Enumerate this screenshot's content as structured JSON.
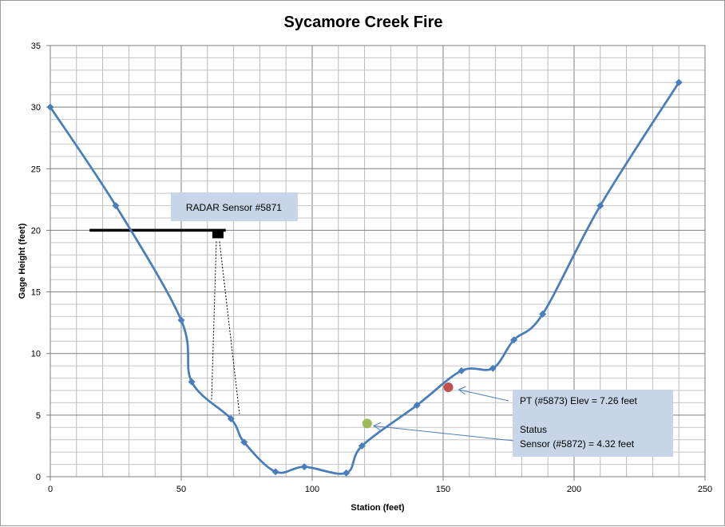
{
  "chart_data": {
    "type": "line",
    "title": "Sycamore Creek Fire",
    "xlabel": "Station (feet)",
    "ylabel": "Gage Height (feet)",
    "xlim": [
      0,
      250
    ],
    "ylim": [
      0,
      35
    ],
    "xticks": [
      0,
      50,
      100,
      150,
      200,
      250
    ],
    "yticks": [
      0,
      5,
      10,
      15,
      20,
      25,
      30,
      35
    ],
    "grid": true,
    "series": [
      {
        "color": "#4a7ebb",
        "marker": "diamond",
        "smooth": true,
        "points": [
          [
            0,
            30
          ],
          [
            25,
            22
          ],
          [
            50,
            12.7
          ],
          [
            54,
            7.7
          ],
          [
            69,
            4.7
          ],
          [
            74,
            2.8
          ],
          [
            86,
            0.4
          ],
          [
            97,
            0.8
          ],
          [
            113,
            0.3
          ],
          [
            119,
            2.5
          ],
          [
            140,
            5.8
          ],
          [
            157,
            8.6
          ],
          [
            169,
            8.8
          ],
          [
            177,
            11.1
          ],
          [
            188,
            13.2
          ],
          [
            210,
            22
          ],
          [
            240,
            32
          ]
        ]
      }
    ],
    "sensor_points": [
      {
        "x": 152,
        "y": 7.26,
        "color": "#c0504d"
      },
      {
        "x": 121,
        "y": 4.32,
        "color": "#9bbb59"
      }
    ],
    "annotations": {
      "radar": {
        "label": "RADAR Sensor #5871",
        "bar_y": 20,
        "bar_x": [
          15,
          67
        ],
        "sensor_x": 64
      },
      "pt": {
        "label": "PT (#5873) Elev = 7.26 feet",
        "target": [
          152,
          7.26
        ]
      },
      "status": {
        "line1": "Status",
        "line2": "Sensor (#5872) = 4.32 feet",
        "target": [
          121,
          4.32
        ]
      }
    }
  }
}
